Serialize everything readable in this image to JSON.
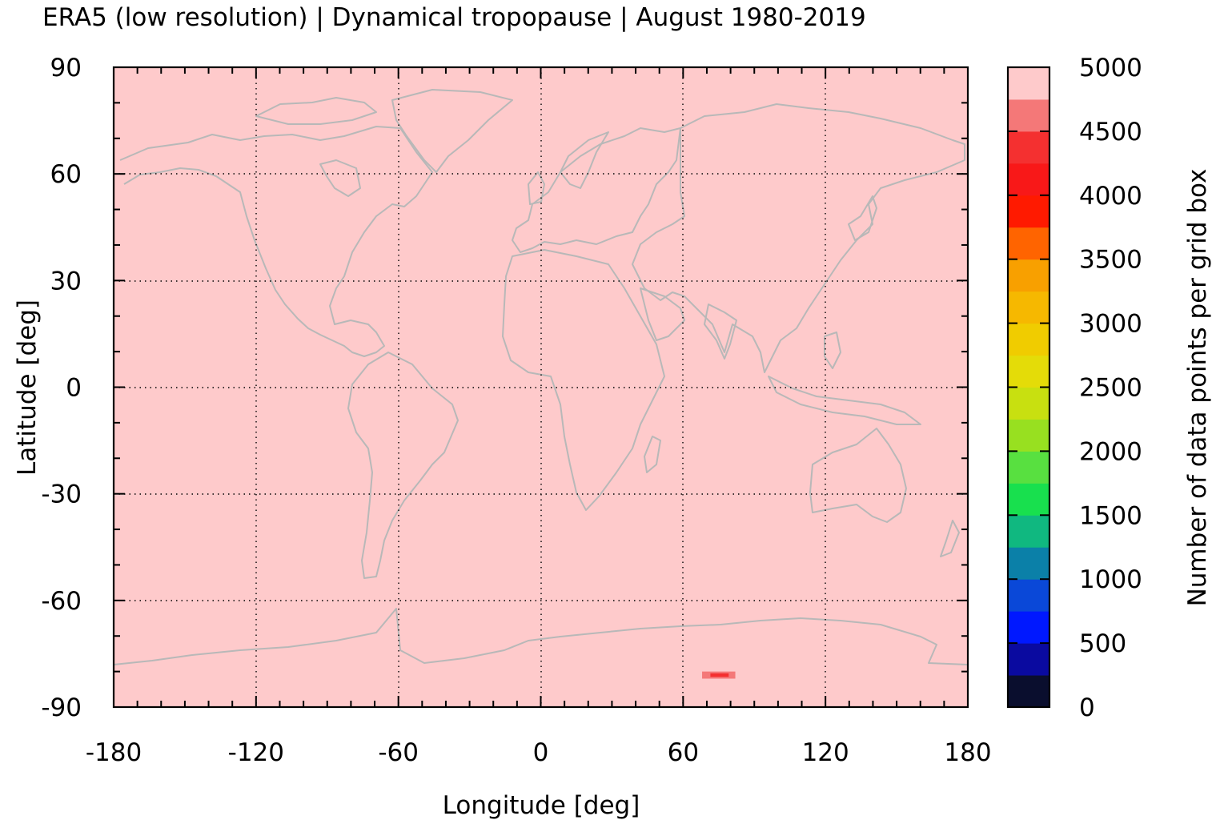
{
  "title": "ERA5 (low resolution) | Dynamical tropopause | August 1980-2019",
  "colors": {
    "background_field": "#fecacb",
    "coastline": "#b8b8b8",
    "grid": "#000000",
    "colorbar_bins": [
      "#0a0e2e",
      "#0a0aa0",
      "#0018ff",
      "#0a48d8",
      "#0b80a8",
      "#10b880",
      "#18e04e",
      "#58e040",
      "#98e020",
      "#c8e010",
      "#e4dc08",
      "#f0cc00",
      "#f6b800",
      "#f8a000",
      "#ff6400",
      "#ff1a00",
      "#f81818",
      "#f43030",
      "#f47878",
      "#fecacb"
    ]
  },
  "chart_data": {
    "type": "heatmap",
    "title": "ERA5 (low resolution) | Dynamical tropopause | August 1980-2019",
    "xlabel": "Longitude [deg]",
    "ylabel": "Latitude [deg]",
    "xlim": [
      -180,
      180
    ],
    "ylim": [
      -90,
      90
    ],
    "xticks": [
      -180,
      -120,
      -60,
      0,
      60,
      120,
      180
    ],
    "yticks": [
      90,
      60,
      30,
      0,
      -30,
      -60,
      -90
    ],
    "xtick_labels": [
      "-180",
      "-120",
      "-60",
      "0",
      "60",
      "120",
      "180"
    ],
    "ytick_labels": [
      "90",
      "60",
      "30",
      "0",
      "-30",
      "-60",
      "-90"
    ],
    "grid": true,
    "background_value": 5000,
    "anomalies": [
      {
        "lon_range": [
          68,
          82
        ],
        "lat_range": [
          -82,
          -80
        ],
        "value": 4300
      }
    ],
    "colorbar": {
      "label": "Number of data points per grid box",
      "min": 0,
      "max": 5000,
      "bin_width": 250,
      "tick_values": [
        5000,
        4500,
        4000,
        3500,
        3000,
        2500,
        2000,
        1500,
        1000,
        500,
        0
      ],
      "tick_labels": [
        "5000",
        "4500",
        "4000",
        "3500",
        "3000",
        "2500",
        "2000",
        "1500",
        "1000",
        "500",
        "0"
      ]
    }
  }
}
